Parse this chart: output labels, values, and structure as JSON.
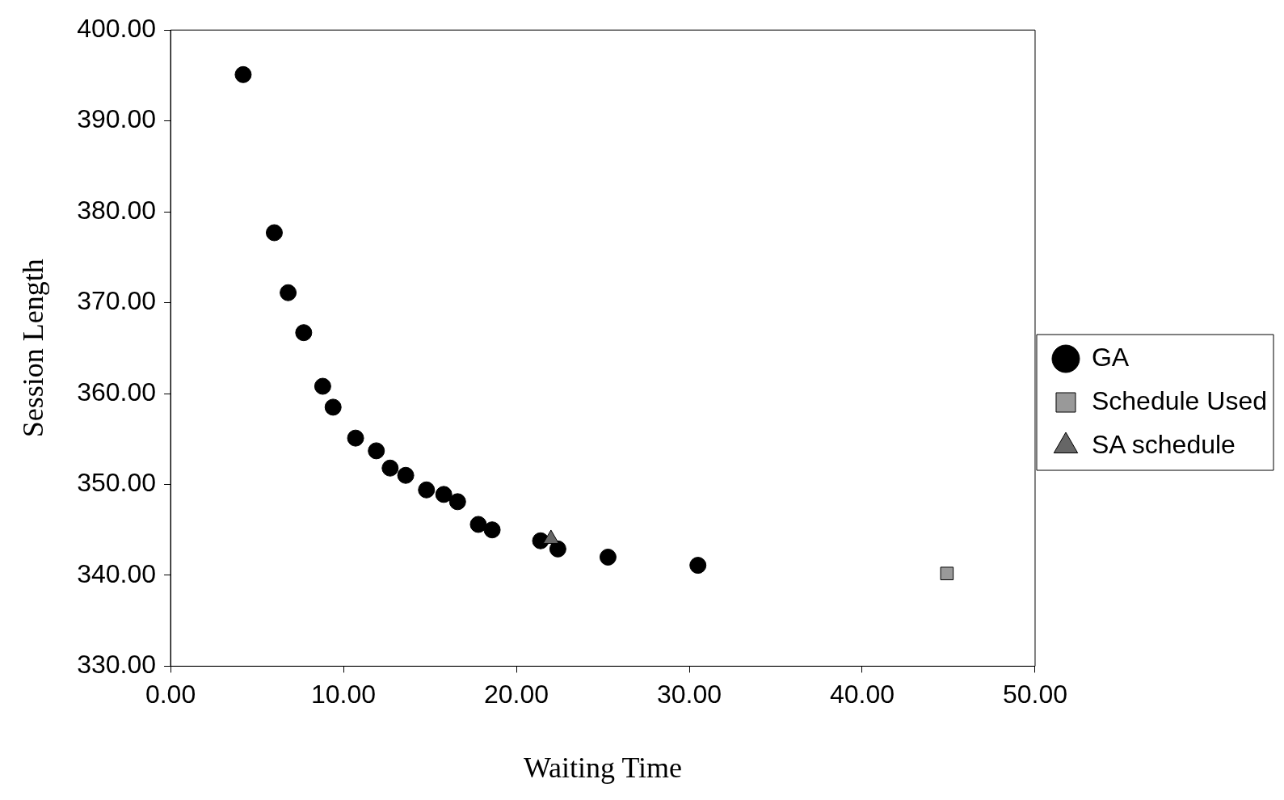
{
  "chart_data": {
    "type": "scatter",
    "xlabel": "Waiting Time",
    "ylabel": "Session Length",
    "legend": "right",
    "xlim": [
      0,
      50
    ],
    "ylim": [
      330,
      400
    ],
    "xticks": [
      {
        "value": 0,
        "label": "0.00"
      },
      {
        "value": 10,
        "label": "10.00"
      },
      {
        "value": 20,
        "label": "20.00"
      },
      {
        "value": 30,
        "label": "30.00"
      },
      {
        "value": 40,
        "label": "40.00"
      },
      {
        "value": 50,
        "label": "50.00"
      }
    ],
    "yticks": [
      {
        "value": 330,
        "label": "330.00"
      },
      {
        "value": 340,
        "label": "340.00"
      },
      {
        "value": 350,
        "label": "350.00"
      },
      {
        "value": 360,
        "label": "360.00"
      },
      {
        "value": 370,
        "label": "370.00"
      },
      {
        "value": 380,
        "label": "380.00"
      },
      {
        "value": 390,
        "label": "390.00"
      },
      {
        "value": 400,
        "label": "400.00"
      }
    ],
    "series": [
      {
        "name": "GA",
        "color": "#000000",
        "marker": "circle",
        "x": [
          4.2,
          6.0,
          6.8,
          7.7,
          8.8,
          9.4,
          10.7,
          11.9,
          12.7,
          13.6,
          14.8,
          15.8,
          16.6,
          17.8,
          18.6,
          21.4,
          22.4,
          25.3,
          30.5
        ],
        "values": [
          395.1,
          377.7,
          371.1,
          366.7,
          360.8,
          358.5,
          355.1,
          353.7,
          351.8,
          351.0,
          349.4,
          348.9,
          348.1,
          345.6,
          345.0,
          343.8,
          342.9,
          342.0,
          341.1
        ]
      },
      {
        "name": "Schedule Used",
        "color": "#999999",
        "marker": "square",
        "x": [
          44.9
        ],
        "values": [
          340.2
        ]
      },
      {
        "name": "SA schedule",
        "color": "#666666",
        "marker": "triangle",
        "x": [
          22.0
        ],
        "values": [
          344.0
        ]
      }
    ]
  }
}
